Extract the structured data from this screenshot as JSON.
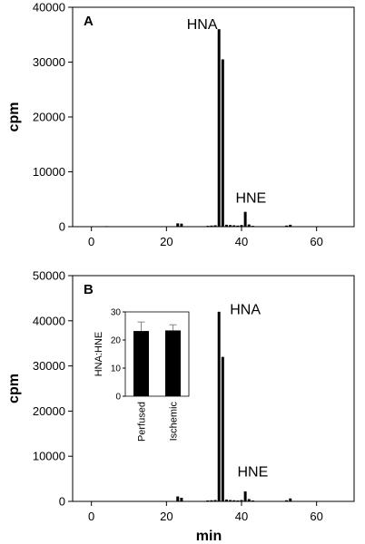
{
  "chart_data": [
    {
      "type": "bar",
      "panel_label": "A",
      "xlabel": "",
      "ylabel": "cpm",
      "xlim": [
        -5,
        70
      ],
      "ylim": [
        0,
        40000
      ],
      "xticks": [
        "0",
        "20",
        "40",
        "60"
      ],
      "yticks": [
        "0",
        "10000",
        "20000",
        "30000",
        "40000"
      ],
      "annotations": [
        {
          "text": "HNA",
          "x": 29.5,
          "y": 36000
        },
        {
          "text": "HNE",
          "x": 42.5,
          "y": 4400
        }
      ],
      "x": [
        4,
        23,
        24,
        31,
        32,
        33,
        34,
        35,
        36,
        37,
        38,
        39,
        40,
        41,
        42,
        43,
        52,
        53
      ],
      "values": [
        100,
        600,
        550,
        150,
        200,
        250,
        36000,
        30500,
        350,
        300,
        250,
        200,
        300,
        2700,
        400,
        150,
        200,
        350
      ]
    },
    {
      "type": "bar",
      "panel_label": "B",
      "xlabel": "min",
      "ylabel": "cpm",
      "xlim": [
        -5,
        70
      ],
      "ylim": [
        0,
        50000
      ],
      "xticks": [
        "0",
        "20",
        "40",
        "60"
      ],
      "yticks": [
        "0",
        "10000",
        "20000",
        "30000",
        "40000",
        "50000"
      ],
      "annotations": [
        {
          "text": "HNA",
          "x": 41,
          "y": 41500
        },
        {
          "text": "HNE",
          "x": 43,
          "y": 5500
        }
      ],
      "x": [
        4,
        23,
        24,
        31,
        32,
        33,
        34,
        35,
        36,
        37,
        38,
        39,
        40,
        41,
        42,
        43,
        52,
        53
      ],
      "values": [
        100,
        1100,
        800,
        200,
        250,
        300,
        42000,
        32000,
        400,
        300,
        250,
        200,
        300,
        2200,
        500,
        200,
        250,
        650
      ],
      "inset": {
        "type": "bar",
        "ylabel": "HNA:HNE",
        "ylim": [
          0,
          30
        ],
        "yticks": [
          "0",
          "10",
          "20",
          "30"
        ],
        "categories": [
          "Perfused",
          "Ischemic"
        ],
        "values": [
          23.2,
          23.4
        ],
        "errors": [
          3.2,
          2.0
        ]
      }
    }
  ]
}
